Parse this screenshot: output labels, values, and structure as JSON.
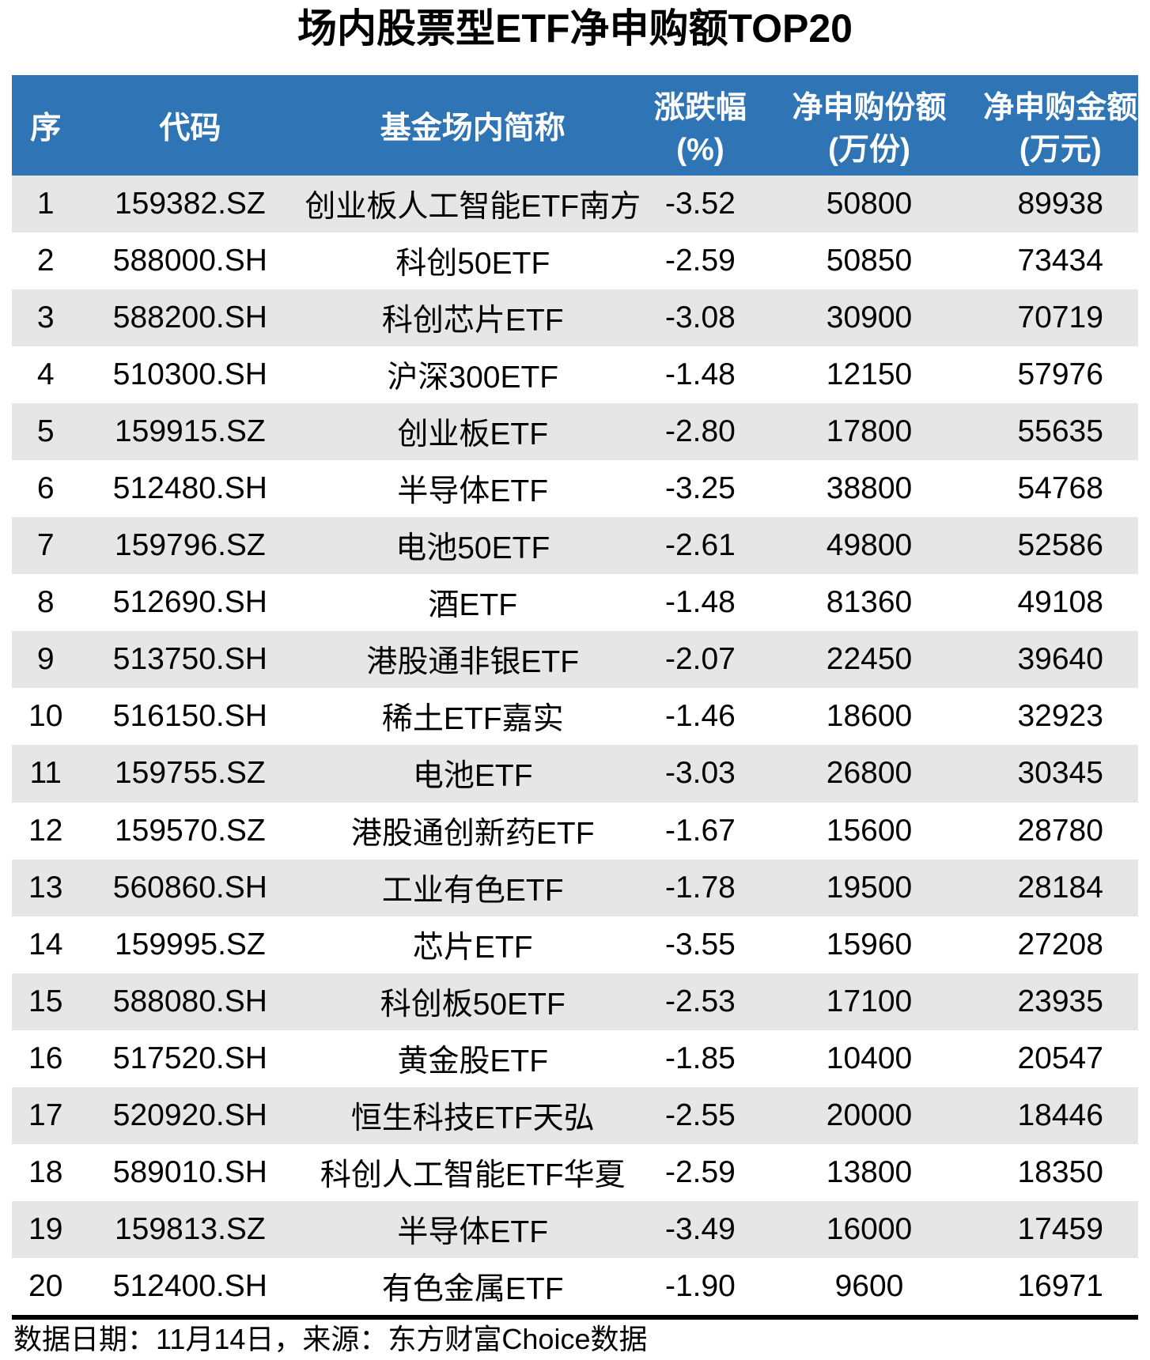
{
  "title": "场内股票型ETF净申购额TOP20",
  "colors": {
    "header_bg": "#2F74B4",
    "header_text": "#FFFFFF",
    "row_alt_bg": "#E6E6E6",
    "row_bg": "#FFFFFF",
    "text": "#000000",
    "divider": "#000000"
  },
  "table": {
    "columns": [
      {
        "line1": "序",
        "line2": ""
      },
      {
        "line1": "代码",
        "line2": ""
      },
      {
        "line1": "基金场内简称",
        "line2": ""
      },
      {
        "line1": "涨跌幅",
        "line2": "(%)"
      },
      {
        "line1": "净申购份额",
        "line2": "(万份)"
      },
      {
        "line1": "净申购金额",
        "line2": "(万元)"
      }
    ]
  },
  "footer": {
    "note": "数据日期：11月14日，来源：东方财富Choice数据"
  },
  "chart_data": {
    "type": "table",
    "title": "场内股票型ETF净申购额TOP20",
    "columns": [
      "序",
      "代码",
      "基金场内简称",
      "涨跌幅(%)",
      "净申购份额(万份)",
      "净申购金额(万元)"
    ],
    "rows": [
      [
        "1",
        "159382.SZ",
        "创业板人工智能ETF南方",
        "-3.52",
        "50800",
        "89938"
      ],
      [
        "2",
        "588000.SH",
        "科创50ETF",
        "-2.59",
        "50850",
        "73434"
      ],
      [
        "3",
        "588200.SH",
        "科创芯片ETF",
        "-3.08",
        "30900",
        "70719"
      ],
      [
        "4",
        "510300.SH",
        "沪深300ETF",
        "-1.48",
        "12150",
        "57976"
      ],
      [
        "5",
        "159915.SZ",
        "创业板ETF",
        "-2.80",
        "17800",
        "55635"
      ],
      [
        "6",
        "512480.SH",
        "半导体ETF",
        "-3.25",
        "38800",
        "54768"
      ],
      [
        "7",
        "159796.SZ",
        "电池50ETF",
        "-2.61",
        "49800",
        "52586"
      ],
      [
        "8",
        "512690.SH",
        "酒ETF",
        "-1.48",
        "81360",
        "49108"
      ],
      [
        "9",
        "513750.SH",
        "港股通非银ETF",
        "-2.07",
        "22450",
        "39640"
      ],
      [
        "10",
        "516150.SH",
        "稀土ETF嘉实",
        "-1.46",
        "18600",
        "32923"
      ],
      [
        "11",
        "159755.SZ",
        "电池ETF",
        "-3.03",
        "26800",
        "30345"
      ],
      [
        "12",
        "159570.SZ",
        "港股通创新药ETF",
        "-1.67",
        "15600",
        "28780"
      ],
      [
        "13",
        "560860.SH",
        "工业有色ETF",
        "-1.78",
        "19500",
        "28184"
      ],
      [
        "14",
        "159995.SZ",
        "芯片ETF",
        "-3.55",
        "15960",
        "27208"
      ],
      [
        "15",
        "588080.SH",
        "科创板50ETF",
        "-2.53",
        "17100",
        "23935"
      ],
      [
        "16",
        "517520.SH",
        "黄金股ETF",
        "-1.85",
        "10400",
        "20547"
      ],
      [
        "17",
        "520920.SH",
        "恒生科技ETF天弘",
        "-2.55",
        "20000",
        "18446"
      ],
      [
        "18",
        "589010.SH",
        "科创人工智能ETF华夏",
        "-2.59",
        "13800",
        "18350"
      ],
      [
        "19",
        "159813.SZ",
        "半导体ETF",
        "-3.49",
        "16000",
        "17459"
      ],
      [
        "20",
        "512400.SH",
        "有色金属ETF",
        "-1.90",
        "9600",
        "16971"
      ]
    ],
    "source_note": "数据日期：11月14日，来源：东方财富Choice数据"
  }
}
